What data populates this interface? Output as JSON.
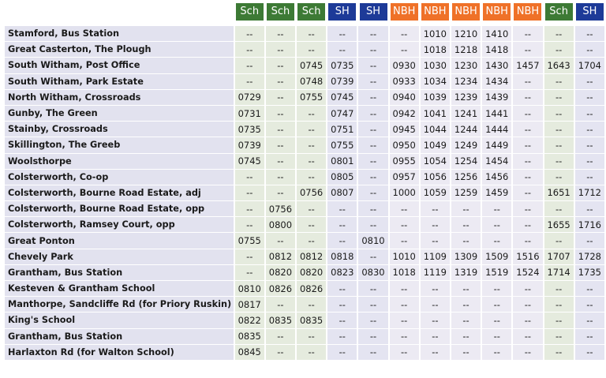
{
  "table": {
    "headers": [
      "Sch",
      "Sch",
      "Sch",
      "SH",
      "SH",
      "NBH",
      "NBH",
      "NBH",
      "NBH",
      "NBH",
      "Sch",
      "SH"
    ],
    "rows": [
      [
        "Stamford, Bus Station",
        "--",
        "--",
        "--",
        "--",
        "--",
        "--",
        "1010",
        "1210",
        "1410",
        "--",
        "--",
        "--"
      ],
      [
        "Great Casterton, The Plough",
        "--",
        "--",
        "--",
        "--",
        "--",
        "--",
        "1018",
        "1218",
        "1418",
        "--",
        "--",
        "--"
      ],
      [
        "South Witham, Post Office",
        "--",
        "--",
        "0745",
        "0735",
        "--",
        "0930",
        "1030",
        "1230",
        "1430",
        "1457",
        "1643",
        "1704"
      ],
      [
        "South Witham, Park Estate",
        "--",
        "--",
        "0748",
        "0739",
        "--",
        "0933",
        "1034",
        "1234",
        "1434",
        "--",
        "--",
        "--"
      ],
      [
        "North Witham, Crossroads",
        "0729",
        "--",
        "0755",
        "0745",
        "--",
        "0940",
        "1039",
        "1239",
        "1439",
        "--",
        "--",
        "--"
      ],
      [
        "Gunby, The Green",
        "0731",
        "--",
        "--",
        "0747",
        "--",
        "0942",
        "1041",
        "1241",
        "1441",
        "--",
        "--",
        "--"
      ],
      [
        "Stainby, Crossroads",
        "0735",
        "--",
        "--",
        "0751",
        "--",
        "0945",
        "1044",
        "1244",
        "1444",
        "--",
        "--",
        "--"
      ],
      [
        "Skillington, The Greeb",
        "0739",
        "--",
        "--",
        "0755",
        "--",
        "0950",
        "1049",
        "1249",
        "1449",
        "--",
        "--",
        "--"
      ],
      [
        "Woolsthorpe",
        "0745",
        "--",
        "--",
        "0801",
        "--",
        "0955",
        "1054",
        "1254",
        "1454",
        "--",
        "--",
        "--"
      ],
      [
        "Colsterworth, Co-op",
        "--",
        "--",
        "--",
        "0805",
        "--",
        "0957",
        "1056",
        "1256",
        "1456",
        "--",
        "--",
        "--"
      ],
      [
        "Colsterworth, Bourne Road Estate, adj",
        "--",
        "--",
        "0756",
        "0807",
        "--",
        "1000",
        "1059",
        "1259",
        "1459",
        "--",
        "1651",
        "1712"
      ],
      [
        "Colsterworth, Bourne Road Estate, opp",
        "--",
        "0756",
        "--",
        "--",
        "--",
        "--",
        "--",
        "--",
        "--",
        "--",
        "--",
        "--"
      ],
      [
        "Colsterworth, Ramsey Court, opp",
        "--",
        "0800",
        "--",
        "--",
        "--",
        "--",
        "--",
        "--",
        "--",
        "--",
        "1655",
        "1716"
      ],
      [
        "Great Ponton",
        "0755",
        "--",
        "--",
        "--",
        "0810",
        "--",
        "--",
        "--",
        "--",
        "--",
        "--",
        "--"
      ],
      [
        "Chevely Park",
        "--",
        "0812",
        "0812",
        "0818",
        "--",
        "1010",
        "1109",
        "1309",
        "1509",
        "1516",
        "1707",
        "1728"
      ],
      [
        "Grantham, Bus Station",
        "--",
        "0820",
        "0820",
        "0823",
        "0830",
        "1018",
        "1119",
        "1319",
        "1519",
        "1524",
        "1714",
        "1735"
      ],
      [
        "Kesteven & Grantham School",
        "0810",
        "0826",
        "0826",
        "--",
        "--",
        "--",
        "--",
        "--",
        "--",
        "--",
        "--",
        "--"
      ],
      [
        "Manthorpe, Sandcliffe Rd (for Priory Ruskin)",
        "0817",
        "--",
        "--",
        "--",
        "--",
        "--",
        "--",
        "--",
        "--",
        "--",
        "--",
        "--"
      ],
      [
        "King's School",
        "0822",
        "0835",
        "0835",
        "--",
        "--",
        "--",
        "--",
        "--",
        "--",
        "--",
        "--",
        "--"
      ],
      [
        "Grantham, Bus Station",
        "0835",
        "--",
        "--",
        "--",
        "--",
        "--",
        "--",
        "--",
        "--",
        "--",
        "--",
        "--"
      ],
      [
        "Harlaxton Rd (for Walton School)",
        "0845",
        "--",
        "--",
        "--",
        "--",
        "--",
        "--",
        "--",
        "--",
        "--",
        "--",
        "--"
      ]
    ]
  }
}
